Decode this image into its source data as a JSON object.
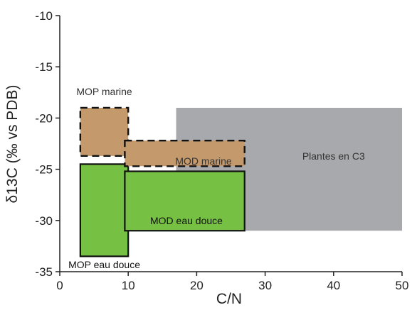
{
  "chart_data": {
    "type": "region",
    "title": "",
    "xlabel": "C/N",
    "ylabel": "δ13C (‰ vs PDB)",
    "xlim": [
      0,
      50
    ],
    "ylim": [
      -35,
      -10
    ],
    "x_ticks": [
      0,
      10,
      20,
      30,
      40,
      50
    ],
    "y_ticks": [
      -10,
      -15,
      -20,
      -25,
      -30,
      -35
    ],
    "grid": false,
    "legend": "none",
    "regions": [
      {
        "name": "Plantes en C3",
        "x": [
          17,
          50
        ],
        "y": [
          -31,
          -19
        ],
        "color": "#a7a9ac",
        "border": "none",
        "label_at": [
          40,
          -23.7
        ]
      },
      {
        "name": "MOP eau douce",
        "x": [
          3,
          10
        ],
        "y": [
          -33.5,
          -24.5
        ],
        "color": "#76c043",
        "border": "solid",
        "label_at": [
          6.5,
          -34.3
        ]
      },
      {
        "name": "MOD eau douce",
        "x": [
          9.5,
          27
        ],
        "y": [
          -31,
          -25.2
        ],
        "color": "#76c043",
        "border": "solid",
        "label_at": [
          18.5,
          -30
        ]
      },
      {
        "name": "MOP marine",
        "x": [
          3,
          10
        ],
        "y": [
          -23.7,
          -19
        ],
        "color": "#c49a6c",
        "border": "dashed",
        "label_at": [
          6.5,
          -17.4
        ]
      },
      {
        "name": "MOD marine",
        "x": [
          9.5,
          27
        ],
        "y": [
          -24.7,
          -22.2
        ],
        "color": "#c49a6c",
        "border": "dashed",
        "label_at": [
          21,
          -24.2
        ]
      }
    ]
  }
}
